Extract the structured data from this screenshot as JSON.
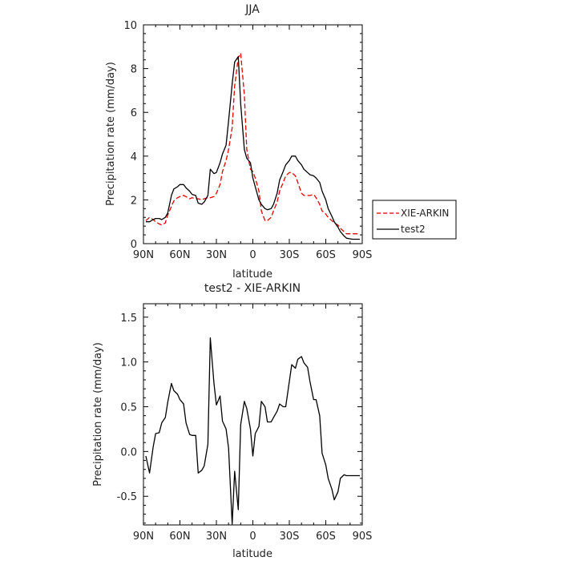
{
  "chart_data": [
    {
      "type": "line",
      "title": "JJA",
      "xlabel": "latitude",
      "ylabel": "Precipitation rate (mm/day)",
      "ylim": [
        0,
        10
      ],
      "yticks": [
        0,
        2,
        4,
        6,
        8,
        10
      ],
      "xlim": [
        90,
        -90
      ],
      "xticks": [
        90,
        60,
        30,
        0,
        -30,
        -60,
        -90
      ],
      "xtick_labels": [
        "90N",
        "60N",
        "30N",
        "0",
        "30S",
        "60S",
        "90S"
      ],
      "legend": "outside-right",
      "series": [
        {
          "name": "XIE-ARKIN",
          "color": "#e00000",
          "dash": true,
          "x": [
            88,
            85,
            82,
            80,
            77,
            75,
            72,
            70,
            67,
            65,
            62,
            60,
            57,
            55,
            52,
            50,
            47,
            45,
            42,
            40,
            37,
            35,
            32,
            30,
            27,
            25,
            22,
            20,
            17,
            15,
            12,
            10,
            7,
            5,
            2,
            0,
            -2,
            -5,
            -7,
            -10,
            -12,
            -15,
            -17,
            -20,
            -22,
            -25,
            -27,
            -30,
            -32,
            -35,
            -37,
            -40,
            -42,
            -45,
            -47,
            -50,
            -52,
            -55,
            -57,
            -60,
            -62,
            -65,
            -67,
            -70,
            -72,
            -75,
            -77,
            -80,
            -82,
            -85,
            -88
          ],
          "values": [
            1.05,
            1.2,
            1.1,
            1.0,
            0.9,
            0.85,
            0.95,
            1.3,
            1.7,
            1.95,
            2.1,
            2.15,
            2.2,
            2.15,
            2.05,
            2.1,
            2.05,
            2.05,
            2.0,
            2.05,
            2.1,
            2.1,
            2.15,
            2.3,
            2.7,
            3.3,
            3.8,
            4.3,
            5.3,
            7.2,
            8.5,
            8.7,
            6.8,
            4.3,
            3.4,
            3.3,
            3.0,
            2.4,
            1.5,
            1.05,
            1.05,
            1.2,
            1.5,
            1.9,
            2.4,
            2.8,
            3.1,
            3.25,
            3.25,
            3.1,
            2.8,
            2.3,
            2.2,
            2.2,
            2.2,
            2.25,
            2.1,
            1.8,
            1.5,
            1.35,
            1.2,
            1.05,
            0.95,
            0.85,
            0.7,
            0.55,
            0.45,
            0.45,
            0.45,
            0.45,
            0.45
          ]
        },
        {
          "name": "test2",
          "color": "#000000",
          "dash": false,
          "x": [
            88,
            85,
            82,
            80,
            77,
            75,
            72,
            70,
            67,
            65,
            62,
            60,
            57,
            55,
            52,
            50,
            47,
            45,
            42,
            40,
            37,
            35,
            32,
            30,
            27,
            25,
            22,
            20,
            17,
            15,
            12,
            10,
            7,
            5,
            2,
            0,
            -2,
            -5,
            -7,
            -10,
            -12,
            -15,
            -17,
            -20,
            -22,
            -25,
            -27,
            -30,
            -32,
            -35,
            -37,
            -40,
            -42,
            -45,
            -47,
            -50,
            -52,
            -55,
            -57,
            -60,
            -62,
            -65,
            -67,
            -70,
            -72,
            -75,
            -77,
            -80,
            -82,
            -85,
            -88
          ],
          "values": [
            1.0,
            1.0,
            1.1,
            1.15,
            1.15,
            1.1,
            1.2,
            1.4,
            2.2,
            2.5,
            2.6,
            2.7,
            2.7,
            2.55,
            2.4,
            2.25,
            2.2,
            1.85,
            1.8,
            1.9,
            2.2,
            3.4,
            3.2,
            3.25,
            3.7,
            4.1,
            4.5,
            5.6,
            7.3,
            8.3,
            8.55,
            6.4,
            4.3,
            3.9,
            3.7,
            3.0,
            2.6,
            2.0,
            1.8,
            1.6,
            1.55,
            1.6,
            1.8,
            2.3,
            2.9,
            3.3,
            3.6,
            3.8,
            4.0,
            4.0,
            3.8,
            3.6,
            3.4,
            3.25,
            3.15,
            3.1,
            3.0,
            2.8,
            2.4,
            2.0,
            1.6,
            1.25,
            1.0,
            0.75,
            0.55,
            0.35,
            0.25,
            0.22,
            0.2,
            0.2,
            0.2
          ]
        }
      ]
    },
    {
      "type": "line",
      "title": "test2 - XIE-ARKIN",
      "xlabel": "latitude",
      "ylabel": "Precipitation rate (mm/day)",
      "ylim": [
        -0.82,
        1.65
      ],
      "yticks": [
        -0.5,
        0.0,
        0.5,
        1.0,
        1.5
      ],
      "ytick_labels": [
        "-0.5",
        "0.0",
        "0.5",
        "1.0",
        "1.5"
      ],
      "xlim": [
        90,
        -90
      ],
      "xticks": [
        90,
        60,
        30,
        0,
        -30,
        -60,
        -90
      ],
      "xtick_labels": [
        "90N",
        "60N",
        "30N",
        "0",
        "30S",
        "60S",
        "90S"
      ],
      "series": [
        {
          "name": "test2 - XIE-ARKIN",
          "color": "#000000",
          "dash": false,
          "x": [
            88,
            85,
            82,
            80,
            77,
            75,
            72,
            70,
            67,
            65,
            62,
            60,
            57,
            55,
            52,
            50,
            47,
            45,
            42,
            40,
            37,
            35,
            32,
            30,
            27,
            25,
            22,
            20,
            17,
            15,
            12,
            10,
            7,
            5,
            2,
            0,
            -2,
            -5,
            -7,
            -10,
            -12,
            -15,
            -17,
            -20,
            -22,
            -25,
            -27,
            -30,
            -32,
            -35,
            -37,
            -40,
            -42,
            -45,
            -47,
            -50,
            -52,
            -55,
            -57,
            -60,
            -62,
            -65,
            -67,
            -70,
            -72,
            -75,
            -77,
            -80,
            -82,
            -85,
            -88
          ],
          "values": [
            -0.05,
            -0.24,
            0.05,
            0.2,
            0.21,
            0.32,
            0.38,
            0.55,
            0.76,
            0.68,
            0.64,
            0.58,
            0.53,
            0.32,
            0.19,
            0.18,
            0.18,
            -0.24,
            -0.21,
            -0.16,
            0.08,
            1.27,
            0.76,
            0.52,
            0.62,
            0.34,
            0.25,
            0.04,
            -0.81,
            -0.22,
            -0.65,
            0.3,
            0.56,
            0.48,
            0.25,
            -0.05,
            0.2,
            0.28,
            0.56,
            0.5,
            0.33,
            0.33,
            0.38,
            0.45,
            0.53,
            0.5,
            0.5,
            0.78,
            0.97,
            0.93,
            1.03,
            1.06,
            0.99,
            0.94,
            0.78,
            0.58,
            0.58,
            0.4,
            -0.02,
            -0.15,
            -0.3,
            -0.42,
            -0.54,
            -0.45,
            -0.3,
            -0.26,
            -0.27,
            -0.27,
            -0.27,
            -0.27,
            -0.27
          ]
        }
      ]
    }
  ]
}
